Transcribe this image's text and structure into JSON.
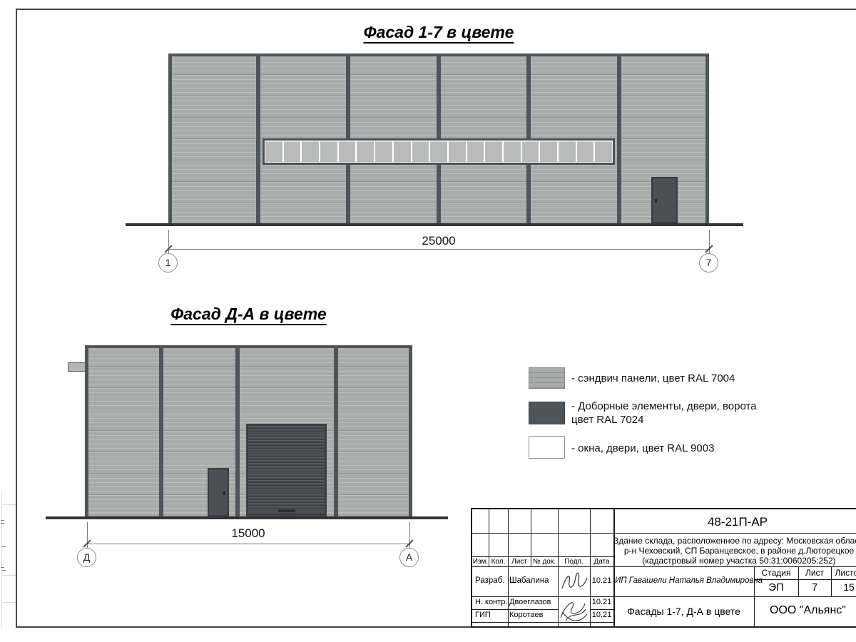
{
  "titles": {
    "facade1": "Фасад 1-7 в цвете",
    "facade2": "Фасад Д-А в цвете"
  },
  "facade1": {
    "dimension": "25000",
    "axis_left": "1",
    "axis_right": "7",
    "window_panes": 19
  },
  "facade2": {
    "dimension": "15000",
    "axis_left": "Д",
    "axis_right": "А"
  },
  "legend": {
    "items": [
      {
        "label": "- сэндвич панели, цвет RAL 7004"
      },
      {
        "label": "- Доборные элементы, двери, ворота",
        "label2": "цвет RAL 7024"
      },
      {
        "label": "- окна, двери, цвет RAL 9003"
      }
    ]
  },
  "colors": {
    "panel_ral7004": "#a7acaa",
    "dark_ral7024": "#4d545a",
    "white_ral9003": "#ffffff"
  },
  "title_block": {
    "doc_code": "48-21П-АР",
    "description": [
      "Здание склада, расположенное по адресу: Московская область",
      "р-н Чеховский, СП Баранцевское, в районе д.Люторецкое",
      "(кадастровый номер участка 50:31:0060205:252)"
    ],
    "header_cols": [
      "Изм.",
      "Кол.",
      "Лист",
      "№ док.",
      "Подп.",
      "Дата"
    ],
    "rows": [
      {
        "role": "Разраб.",
        "name": "Шабалина",
        "date": "10.21"
      },
      {
        "role": "Н. контр.",
        "name": "Двоеглазов",
        "date": "10.21"
      },
      {
        "role": "ГИП",
        "name": "Коротаев",
        "date": "10.21"
      }
    ],
    "client": "ИП Гавашели Наталья Владимировна",
    "stage_label": "Стадия",
    "sheet_label": "Лист",
    "sheets_label": "Листов",
    "stage_value": "ЭП",
    "sheet_value": "7",
    "sheets_value": "15",
    "drawing_title": "Фасады 1-7, Д-А в цвете",
    "company": "ООО \"Альянс\""
  }
}
